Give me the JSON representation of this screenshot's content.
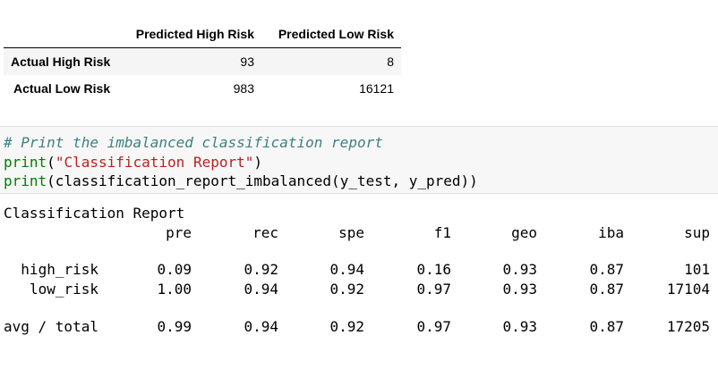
{
  "confusion_matrix": {
    "columns": [
      "Predicted High Risk",
      "Predicted Low Risk"
    ],
    "rows": [
      {
        "label": "Actual High Risk",
        "values": [
          "93",
          "8"
        ]
      },
      {
        "label": "Actual Low Risk",
        "values": [
          "983",
          "16121"
        ]
      }
    ]
  },
  "code_cell": {
    "comment": "# Print the imbalanced classification report",
    "line2": {
      "func": "print",
      "open": "(",
      "string": "\"Classification Report\"",
      "close": ")"
    },
    "line3": {
      "func": "print",
      "rest": "(classification_report_imbalanced(y_test, y_pred))"
    }
  },
  "output": {
    "title": "Classification Report",
    "headers": [
      "pre",
      "rec",
      "spe",
      "f1",
      "geo",
      "iba",
      "sup"
    ],
    "rows": [
      {
        "label": "high_risk",
        "values": [
          "0.09",
          "0.92",
          "0.94",
          "0.16",
          "0.93",
          "0.87",
          "101"
        ]
      },
      {
        "label": "low_risk",
        "values": [
          "1.00",
          "0.94",
          "0.92",
          "0.97",
          "0.93",
          "0.87",
          "17104"
        ]
      }
    ],
    "total": {
      "label": "avg / total",
      "values": [
        "0.99",
        "0.94",
        "0.92",
        "0.97",
        "0.93",
        "0.87",
        "17205"
      ]
    }
  }
}
